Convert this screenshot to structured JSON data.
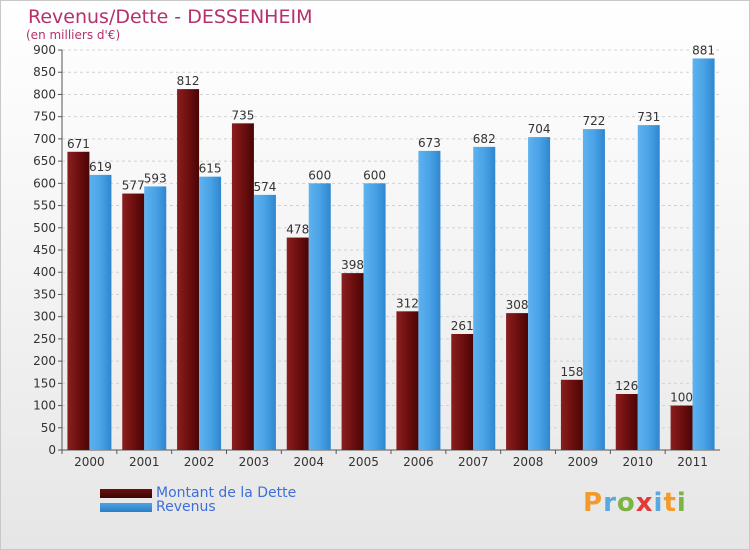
{
  "header": {
    "title": "Revenus/Dette - DESSENHEIM",
    "subtitle": "(en milliers d'€)"
  },
  "legend": {
    "items": [
      {
        "label": "Montant de la Dette",
        "color": "#6e0f0f"
      },
      {
        "label": "Revenus",
        "color": "#4aa3e6"
      }
    ]
  },
  "logo": {
    "letters": [
      {
        "char": "P",
        "color": "#f39a2b"
      },
      {
        "char": "r",
        "color": "#5aa8e0"
      },
      {
        "char": "o",
        "color": "#7cb342"
      },
      {
        "char": "x",
        "color": "#e53935"
      },
      {
        "char": "i",
        "color": "#5aa8e0"
      },
      {
        "char": "t",
        "color": "#f39a2b"
      },
      {
        "char": "i",
        "color": "#7cb342"
      }
    ]
  },
  "chart_data": {
    "type": "bar",
    "title": "Revenus/Dette - DESSENHEIM",
    "subtitle": "(en milliers d'€)",
    "categories": [
      "2000",
      "2001",
      "2002",
      "2003",
      "2004",
      "2005",
      "2006",
      "2007",
      "2008",
      "2009",
      "2010",
      "2011"
    ],
    "series": [
      {
        "name": "Montant de la Dette",
        "color": "#6e0f0f",
        "values": [
          671,
          577,
          812,
          735,
          478,
          398,
          312,
          261,
          308,
          158,
          126,
          100
        ]
      },
      {
        "name": "Revenus",
        "color": "#4aa3e6",
        "values": [
          619,
          593,
          615,
          574,
          600,
          600,
          673,
          682,
          704,
          722,
          731,
          881
        ]
      }
    ],
    "ylim": [
      0,
      900
    ],
    "yticks": [
      0,
      50,
      100,
      150,
      200,
      250,
      300,
      350,
      400,
      450,
      500,
      550,
      600,
      650,
      700,
      750,
      800,
      850,
      900
    ],
    "grid": true,
    "legend_position": "bottom-left"
  }
}
